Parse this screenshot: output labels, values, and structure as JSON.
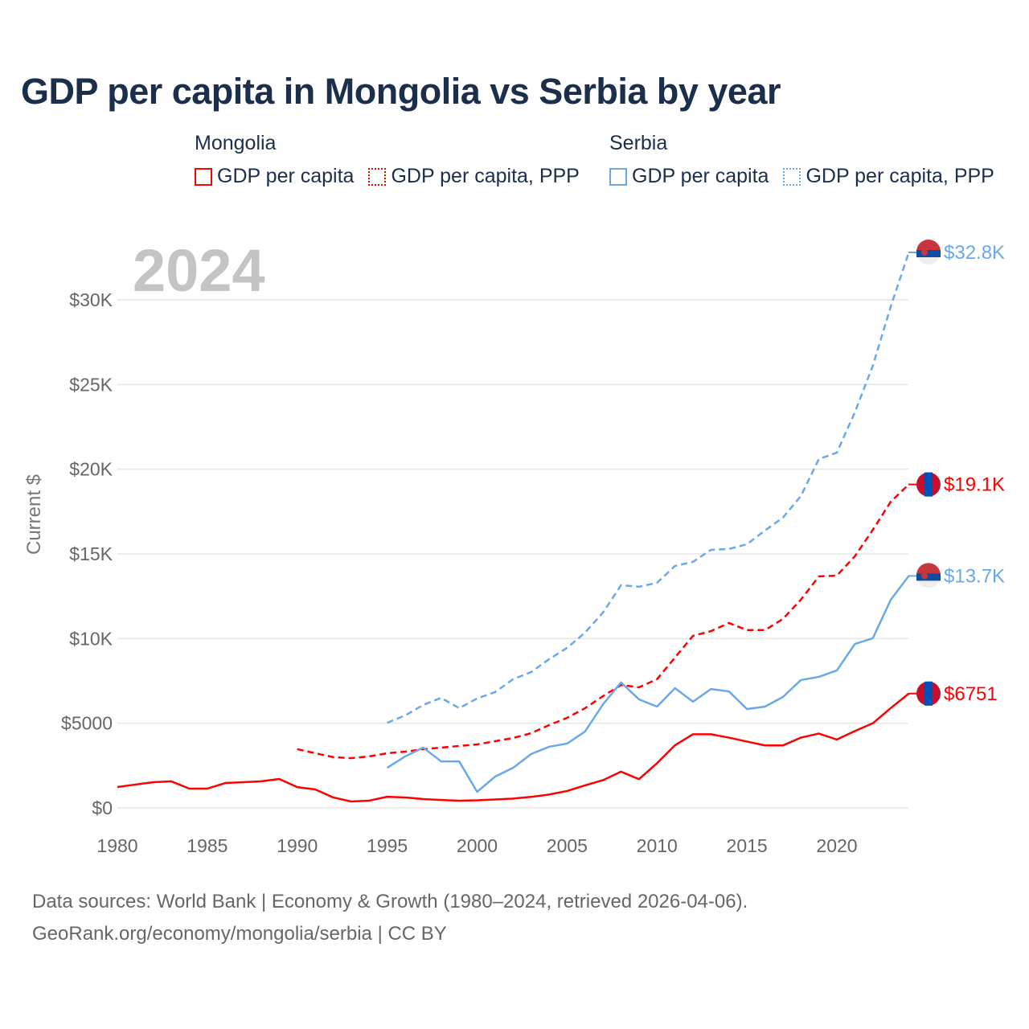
{
  "title": "GDP per capita in Mongolia vs Serbia by year",
  "legend": {
    "groups": [
      {
        "name": "Mongolia",
        "items": [
          "GDP per capita",
          "GDP per capita, PPP"
        ]
      },
      {
        "name": "Serbia",
        "items": [
          "GDP per capita",
          "GDP per capita, PPP"
        ]
      }
    ]
  },
  "colors": {
    "mongolia": "#ff0000",
    "serbia": "#6aa8e8"
  },
  "year_watermark": "2024",
  "chart_data": {
    "type": "line",
    "title": "GDP per capita in Mongolia vs Serbia by year",
    "xlabel": "",
    "ylabel": "Current $",
    "xlim": [
      1980,
      2024
    ],
    "ylim": [
      0,
      33000
    ],
    "x_ticks": [
      1980,
      1985,
      1990,
      1995,
      2000,
      2005,
      2010,
      2015,
      2020
    ],
    "y_ticks": [
      0,
      5000,
      10000,
      15000,
      20000,
      25000,
      30000
    ],
    "y_tick_labels": [
      "$0",
      "$5000",
      "$10K",
      "$15K",
      "$20K",
      "$25K",
      "$30K"
    ],
    "grid": true,
    "legend_position": "top",
    "series": [
      {
        "name": "Mongolia GDP per capita",
        "country": "mongolia",
        "dashed": false,
        "start": 1980,
        "end_label": "$6751",
        "values": [
          1234,
          1380,
          1520,
          1570,
          1140,
          1140,
          1470,
          1520,
          1570,
          1710,
          1230,
          1090,
          620,
          380,
          430,
          660,
          620,
          520,
          470,
          430,
          450,
          500,
          550,
          650,
          790,
          1000,
          1330,
          1640,
          2140,
          1700,
          2640,
          3700,
          4350,
          4350,
          4150,
          3920,
          3690,
          3690,
          4150,
          4390,
          4040,
          4540,
          5000,
          5900,
          6751
        ]
      },
      {
        "name": "Mongolia GDP per capita, PPP",
        "country": "mongolia",
        "dashed": true,
        "start": 1990,
        "end_label": "$19.1K",
        "values": [
          3470,
          3230,
          3000,
          2940,
          3040,
          3230,
          3320,
          3470,
          3560,
          3660,
          3750,
          3940,
          4130,
          4410,
          4890,
          5320,
          5890,
          6600,
          7260,
          7120,
          7600,
          8880,
          10160,
          10440,
          10920,
          10500,
          10500,
          11160,
          12300,
          13670,
          13720,
          14860,
          16420,
          18090,
          19100
        ]
      },
      {
        "name": "Serbia GDP per capita",
        "country": "serbia",
        "dashed": false,
        "start": 1995,
        "end_label": "$13.7K",
        "values": [
          2370,
          3040,
          3560,
          2750,
          2750,
          950,
          1850,
          2370,
          3180,
          3610,
          3800,
          4510,
          6120,
          7410,
          6410,
          5980,
          7070,
          6270,
          7020,
          6880,
          5840,
          5980,
          6550,
          7550,
          7740,
          8120,
          9680,
          10020,
          12300,
          13700
        ]
      },
      {
        "name": "Serbia GDP per capita, PPP",
        "country": "serbia",
        "dashed": true,
        "start": 1995,
        "end_label": "$32.8K",
        "values": [
          5030,
          5460,
          6080,
          6500,
          5890,
          6460,
          6840,
          7600,
          8020,
          8780,
          9450,
          10350,
          11540,
          13150,
          13060,
          13290,
          14290,
          14530,
          15240,
          15290,
          15570,
          16380,
          17140,
          18420,
          20600,
          20980,
          23360,
          26110,
          29620,
          32800
        ]
      }
    ]
  },
  "footer": {
    "line1": "Data sources: World Bank | Economy & Growth (1980–2024, retrieved 2026-04-06).",
    "line2": "GeoRank.org/economy/mongolia/serbia | CC BY"
  }
}
